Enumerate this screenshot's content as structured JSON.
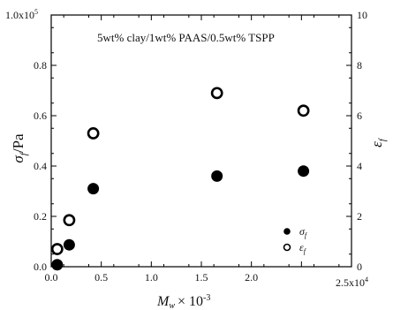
{
  "chart_data": {
    "type": "scatter",
    "annotation": "5wt% clay/1wt% PAAS/0.5wt% TSPP",
    "xlabel": {
      "main": "M",
      "sub": "w",
      "mult": "× 10",
      "exp": "-3"
    },
    "ylabel_left": {
      "main": "σ",
      "sub": "f",
      "unit": "/Pa"
    },
    "ylabel_right": {
      "main": "ε",
      "sub": "f"
    },
    "xlim": [
      0,
      25000
    ],
    "ylim_left": [
      0,
      100000
    ],
    "ylim_right": [
      0,
      10
    ],
    "x_ticks": [
      "0.0",
      "0.5",
      "1.0",
      "1.5",
      "2.0"
    ],
    "x_scale_label": {
      "base": "2.5x10",
      "exp": "4"
    },
    "y_left_ticks": [
      "0.0",
      "0.2",
      "0.4",
      "0.6",
      "0.8"
    ],
    "y_left_scale_label": {
      "base": "1.0x10",
      "exp": "5"
    },
    "y_right_ticks": [
      "0",
      "2",
      "4",
      "6",
      "8",
      "10"
    ],
    "legend_position": "bottom-right",
    "series": [
      {
        "name": "σ",
        "name_sub": "f",
        "marker": "filled-circle",
        "axis": "left",
        "x": [
          500,
          1500,
          3500,
          13800,
          21000
        ],
        "y": [
          800,
          8700,
          31000,
          36000,
          38000
        ]
      },
      {
        "name": "ε",
        "name_sub": "f",
        "marker": "open-circle",
        "axis": "right",
        "x": [
          500,
          1500,
          3500,
          13800,
          21000
        ],
        "y": [
          0.7,
          1.85,
          5.3,
          6.9,
          6.2
        ]
      }
    ]
  }
}
